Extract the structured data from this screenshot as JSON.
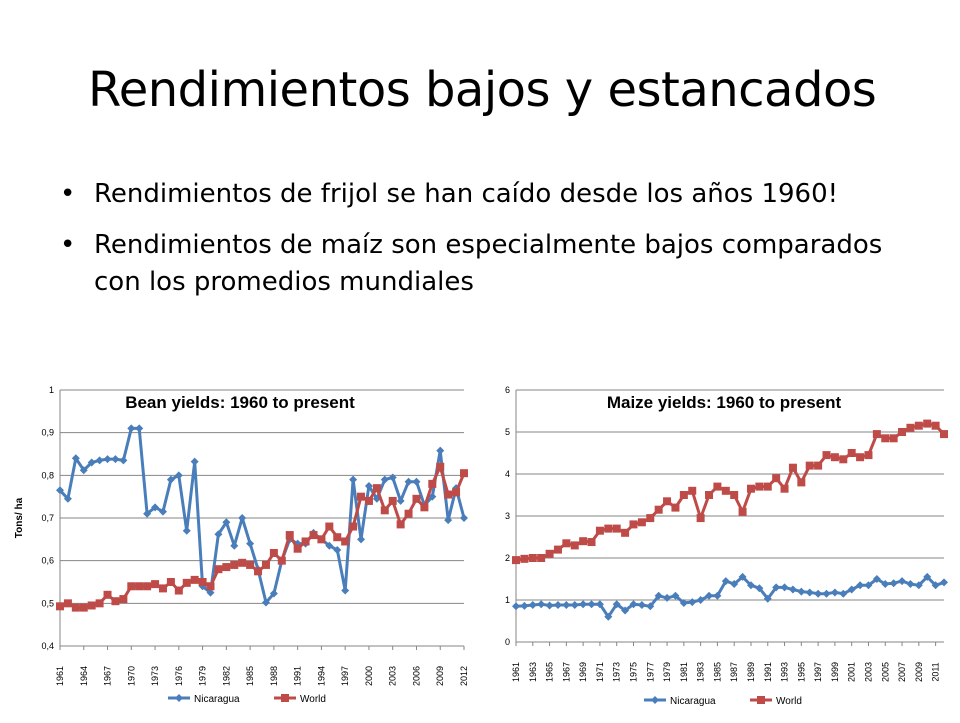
{
  "slide": {
    "title": "Rendimientos bajos y estancados",
    "bullets": [
      "Rendimientos de frijol se han caído desde los años 1960!",
      "Rendimientos de maíz son especialmente bajos comparados con los promedios mundiales"
    ],
    "bullet_symbol": "•"
  },
  "colors": {
    "nicaragua": "#4a7ebb",
    "world": "#be4b48",
    "grid": "#868686"
  },
  "chart_data": [
    {
      "type": "line",
      "title": "Bean yields: 1960 to present",
      "ylabel": "Tons/ ha",
      "xlabel": "",
      "ylim": [
        0.4,
        1.0
      ],
      "yticks": [
        "0,4",
        "0,5",
        "0,6",
        "0,7",
        "0,8",
        "0,9",
        "1"
      ],
      "x_range": [
        1961,
        2012
      ],
      "x_tick_labels": [
        "1961",
        "1964",
        "1967",
        "1970",
        "1973",
        "1976",
        "1979",
        "1982",
        "1985",
        "1988",
        "1991",
        "1994",
        "1997",
        "2000",
        "2003",
        "2006",
        "2009",
        "2012"
      ],
      "grid": true,
      "legend": "bottom",
      "series": [
        {
          "name": "Nicaragua",
          "marker": "diamond",
          "values": [
            0.765,
            0.745,
            0.84,
            0.812,
            0.83,
            0.835,
            0.838,
            0.838,
            0.835,
            0.91,
            0.91,
            0.71,
            0.725,
            0.715,
            0.79,
            0.8,
            0.67,
            0.832,
            0.54,
            0.525,
            0.662,
            0.69,
            0.635,
            0.7,
            0.64,
            0.58,
            0.502,
            0.523,
            0.6,
            0.65,
            0.64,
            0.64,
            0.665,
            0.65,
            0.635,
            0.625,
            0.53,
            0.79,
            0.65,
            0.775,
            0.745,
            0.79,
            0.795,
            0.74,
            0.785,
            0.785,
            0.73,
            0.75,
            0.858,
            0.695,
            0.77,
            0.7
          ]
        },
        {
          "name": "World",
          "marker": "square",
          "values": [
            0.493,
            0.5,
            0.49,
            0.49,
            0.495,
            0.5,
            0.52,
            0.505,
            0.51,
            0.54,
            0.54,
            0.54,
            0.545,
            0.535,
            0.55,
            0.53,
            0.548,
            0.555,
            0.55,
            0.54,
            0.58,
            0.585,
            0.59,
            0.595,
            0.59,
            0.575,
            0.59,
            0.618,
            0.6,
            0.66,
            0.628,
            0.645,
            0.66,
            0.65,
            0.68,
            0.655,
            0.645,
            0.68,
            0.75,
            0.74,
            0.77,
            0.718,
            0.74,
            0.685,
            0.71,
            0.745,
            0.725,
            0.78,
            0.82,
            0.755,
            0.76,
            0.805
          ]
        }
      ]
    },
    {
      "type": "line",
      "title": "Maize yields: 1960 to present",
      "ylabel": "",
      "xlabel": "",
      "ylim": [
        0,
        6
      ],
      "yticks": [
        "0",
        "1",
        "2",
        "3",
        "4",
        "5",
        "6"
      ],
      "x_range": [
        1961,
        2012
      ],
      "x_tick_labels": [
        "1961",
        "1963",
        "1965",
        "1967",
        "1969",
        "1971",
        "1973",
        "1975",
        "1977",
        "1979",
        "1981",
        "1983",
        "1985",
        "1987",
        "1989",
        "1991",
        "1993",
        "1995",
        "1997",
        "1999",
        "2001",
        "2003",
        "2005",
        "2007",
        "2009",
        "2011"
      ],
      "grid": true,
      "legend": "bottom",
      "series": [
        {
          "name": "Nicaragua",
          "marker": "diamond",
          "values": [
            0.85,
            0.86,
            0.88,
            0.9,
            0.87,
            0.88,
            0.88,
            0.88,
            0.9,
            0.9,
            0.9,
            0.6,
            0.9,
            0.75,
            0.9,
            0.88,
            0.85,
            1.1,
            1.05,
            1.1,
            0.93,
            0.95,
            1.0,
            1.1,
            1.1,
            1.45,
            1.38,
            1.55,
            1.35,
            1.28,
            1.03,
            1.3,
            1.3,
            1.25,
            1.2,
            1.18,
            1.15,
            1.15,
            1.18,
            1.15,
            1.25,
            1.35,
            1.35,
            1.5,
            1.38,
            1.4,
            1.45,
            1.38,
            1.35,
            1.55,
            1.35,
            1.42
          ]
        },
        {
          "name": "World",
          "marker": "square",
          "values": [
            1.95,
            1.98,
            2.0,
            2.0,
            2.1,
            2.2,
            2.35,
            2.3,
            2.4,
            2.38,
            2.65,
            2.7,
            2.7,
            2.6,
            2.8,
            2.85,
            2.95,
            3.15,
            3.35,
            3.2,
            3.5,
            3.6,
            2.95,
            3.5,
            3.7,
            3.6,
            3.5,
            3.1,
            3.65,
            3.7,
            3.7,
            3.9,
            3.65,
            4.15,
            3.8,
            4.2,
            4.2,
            4.45,
            4.4,
            4.35,
            4.5,
            4.4,
            4.45,
            4.95,
            4.85,
            4.85,
            5.0,
            5.1,
            5.15,
            5.2,
            5.15,
            4.95
          ]
        }
      ]
    }
  ]
}
